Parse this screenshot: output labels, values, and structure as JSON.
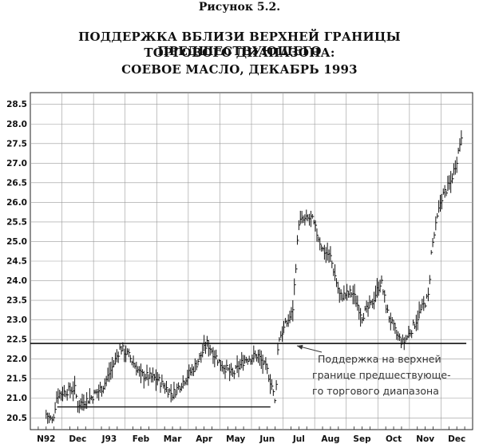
{
  "figure_label": "Рисунок 5.2.",
  "title_lines": [
    "ПОДДЕРЖКА ВБЛИЗИ ВЕРХНЕЙ ГРАНИЦЫ ПРЕДШЕСТВУЮЩЕГО",
    "ТОРГОВОГО ДИАПАЗОНА:",
    "СОЕВОЕ МАСЛО, ДЕКАБРЬ 1993"
  ],
  "annotation_lines": [
    "Поддержка на верхней",
    "границе предшествующе-",
    "го торгового диапазона"
  ],
  "chart_data": {
    "type": "bar",
    "subtype": "ohlc-daily",
    "title": "ПОДДЕРЖКА ВБЛИЗИ ВЕРХНЕЙ ГРАНИЦЫ ПРЕДШЕСТВУЮЩЕГО ТОРГОВОГО ДИАПАЗОНА: СОЕВОЕ МАСЛО, ДЕКАБРЬ 1993",
    "x_ticks": [
      "N92",
      "Dec",
      "J93",
      "Feb",
      "Mar",
      "Apr",
      "May",
      "Jun",
      "Jul",
      "Aug",
      "Sep",
      "Oct",
      "Nov",
      "Dec"
    ],
    "y_ticks": [
      "20.5",
      "21.0",
      "21.5",
      "22.0",
      "22.5",
      "23.0",
      "23.5",
      "24.0",
      "24.5",
      "25.0",
      "25.5",
      "26.0",
      "26.5",
      "27.0",
      "27.5",
      "28.0",
      "28.5"
    ],
    "ylim": [
      20.2,
      28.8
    ],
    "grid": true,
    "y_axis_side": "left",
    "price_path": [
      [
        0.0,
        20.6
      ],
      [
        0.2,
        20.4
      ],
      [
        0.35,
        21.1
      ],
      [
        0.9,
        21.25
      ],
      [
        1.0,
        20.85
      ],
      [
        1.4,
        21.0
      ],
      [
        1.8,
        21.3
      ],
      [
        2.1,
        21.8
      ],
      [
        2.35,
        22.3
      ],
      [
        2.6,
        22.1
      ],
      [
        3.0,
        21.6
      ],
      [
        3.5,
        21.5
      ],
      [
        4.0,
        21.1
      ],
      [
        4.3,
        21.4
      ],
      [
        4.7,
        21.8
      ],
      [
        5.1,
        22.4
      ],
      [
        5.5,
        21.9
      ],
      [
        5.9,
        21.6
      ],
      [
        6.3,
        22.0
      ],
      [
        6.7,
        22.1
      ],
      [
        7.0,
        21.7
      ],
      [
        7.15,
        21.3
      ],
      [
        7.25,
        20.85
      ],
      [
        7.35,
        22.5
      ],
      [
        7.6,
        22.9
      ],
      [
        7.8,
        23.2
      ],
      [
        8.0,
        25.5
      ],
      [
        8.4,
        25.6
      ],
      [
        8.75,
        24.8
      ],
      [
        9.0,
        24.6
      ],
      [
        9.3,
        23.6
      ],
      [
        9.7,
        23.7
      ],
      [
        10.0,
        23.1
      ],
      [
        10.3,
        23.4
      ],
      [
        10.6,
        24.0
      ],
      [
        10.8,
        23.2
      ],
      [
        11.1,
        22.6
      ],
      [
        11.3,
        22.4
      ],
      [
        11.6,
        22.8
      ],
      [
        11.9,
        23.3
      ],
      [
        12.1,
        23.6
      ],
      [
        12.2,
        24.8
      ],
      [
        12.5,
        26.1
      ],
      [
        12.8,
        26.5
      ],
      [
        13.0,
        27.1
      ],
      [
        13.15,
        27.75
      ]
    ],
    "lines": [
      {
        "kind": "support",
        "y": 22.4,
        "x_from": 0.0,
        "x_to": 13.3
      },
      {
        "kind": "range-low",
        "y": 20.78,
        "x_from": 0.85,
        "x_to": 7.1
      }
    ]
  }
}
